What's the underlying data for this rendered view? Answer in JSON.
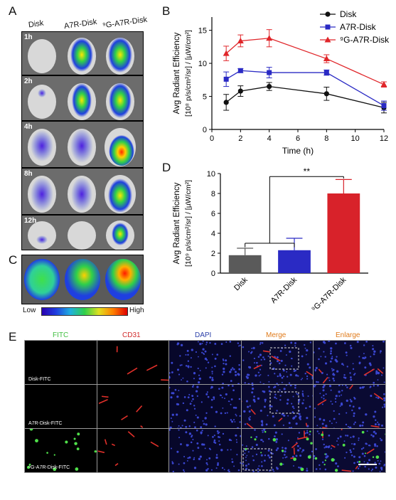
{
  "panel_labels": {
    "a": "A",
    "b": "B",
    "c": "C",
    "d": "D",
    "e": "E"
  },
  "panel_a": {
    "columns": [
      "Disk",
      "A7R-Disk",
      "⁹G-A7R-Disk"
    ],
    "timepoints": [
      "1h",
      "2h",
      "4h",
      "8h",
      "12h"
    ]
  },
  "colorbar": {
    "low": "Low",
    "high": "High"
  },
  "panel_e": {
    "columns": [
      "FITC",
      "CD31",
      "DAPI",
      "Merge",
      "Enlarge"
    ],
    "column_colors": [
      "#3fbf3f",
      "#d12a2a",
      "#2b3fa8",
      "#e07b1a",
      "#e07b1a"
    ],
    "rows": [
      "Disk-FITC",
      "A7R-Disk-FITC",
      "⁹G-A7R-Disk-FITC"
    ]
  },
  "chart_data": [
    {
      "type": "line",
      "panel": "B",
      "xlabel": "Time (h)",
      "ylabel_line1": "Avg Radiant Efficiency",
      "ylabel_line2": "[10⁸ p/s/cm²/sr] / [µW/cm²]",
      "x": [
        1,
        2,
        4,
        8,
        12
      ],
      "xlim": [
        0,
        12
      ],
      "ylim": [
        0,
        17
      ],
      "xticks": [
        0,
        2,
        4,
        6,
        8,
        10,
        12
      ],
      "yticks": [
        0,
        5,
        10,
        15
      ],
      "legend_position": "top-right",
      "series": [
        {
          "name": "Disk",
          "color": "#111111",
          "marker": "circle",
          "values": [
            4.1,
            5.8,
            6.5,
            5.4,
            3.3
          ],
          "errors": [
            1.2,
            0.8,
            0.6,
            1.0,
            0.8
          ]
        },
        {
          "name": "A7R-Disk",
          "color": "#2a2ac4",
          "marker": "square",
          "values": [
            7.6,
            8.9,
            8.6,
            8.6,
            3.6
          ],
          "errors": [
            1.1,
            0.3,
            0.8,
            0.4,
            0.7
          ]
        },
        {
          "name": "⁹G-A7R-Disk",
          "color": "#e0262a",
          "marker": "triangle",
          "values": [
            11.5,
            13.4,
            13.8,
            10.7,
            6.8
          ],
          "errors": [
            1.1,
            0.9,
            1.3,
            0.6,
            0.4
          ]
        }
      ]
    },
    {
      "type": "bar",
      "panel": "D",
      "ylabel_line1": "Avg Radiant Efficiency",
      "ylabel_line2": "[10⁹ p/s/cm²/sr] / [µW/cm²]",
      "categories": [
        "Disk",
        "A7R-Disk",
        "⁹G-A7R-Disk"
      ],
      "values": [
        1.8,
        2.3,
        8.0
      ],
      "errors": [
        0.7,
        1.2,
        1.4
      ],
      "colors": [
        "#5a5a5a",
        "#2a2ac4",
        "#d8222a"
      ],
      "ylim": [
        0,
        10
      ],
      "yticks": [
        0,
        2,
        4,
        6,
        8,
        10
      ],
      "annotation": "**"
    }
  ]
}
